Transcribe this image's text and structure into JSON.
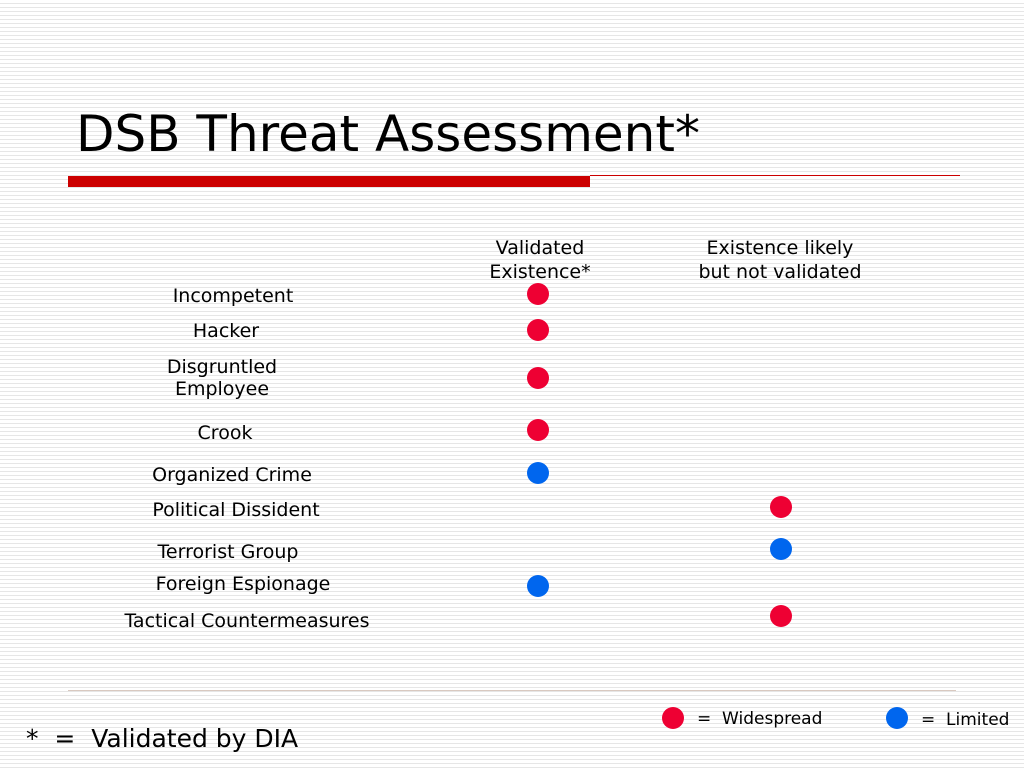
{
  "slide": {
    "title": "DSB Threat Assessment*",
    "columns": [
      {
        "label": "Validated\nExistence*"
      },
      {
        "label": "Existence likely\nbut not validated"
      }
    ],
    "rows": [
      {
        "label": "Incompetent",
        "validated": "widespread",
        "likely": null
      },
      {
        "label": "Hacker",
        "validated": "widespread",
        "likely": null
      },
      {
        "label": "Disgruntled\nEmployee",
        "validated": "widespread",
        "likely": null
      },
      {
        "label": "Crook",
        "validated": "widespread",
        "likely": null
      },
      {
        "label": "Organized Crime",
        "validated": "limited",
        "likely": null
      },
      {
        "label": "Political Dissident",
        "validated": null,
        "likely": "widespread"
      },
      {
        "label": "Terrorist Group",
        "validated": null,
        "likely": "limited"
      },
      {
        "label": "Foreign Espionage",
        "validated": "limited",
        "likely": null
      },
      {
        "label": "Tactical Countermeasures",
        "validated": null,
        "likely": "widespread"
      }
    ],
    "footnote": "*  =  Validated by DIA",
    "legend": {
      "widespread": {
        "text": "=  Widespread",
        "color": "#ee0033"
      },
      "limited": {
        "text": "=  Limited",
        "color": "#0066ee"
      }
    },
    "colors": {
      "accent_rule": "#cc0000"
    }
  }
}
